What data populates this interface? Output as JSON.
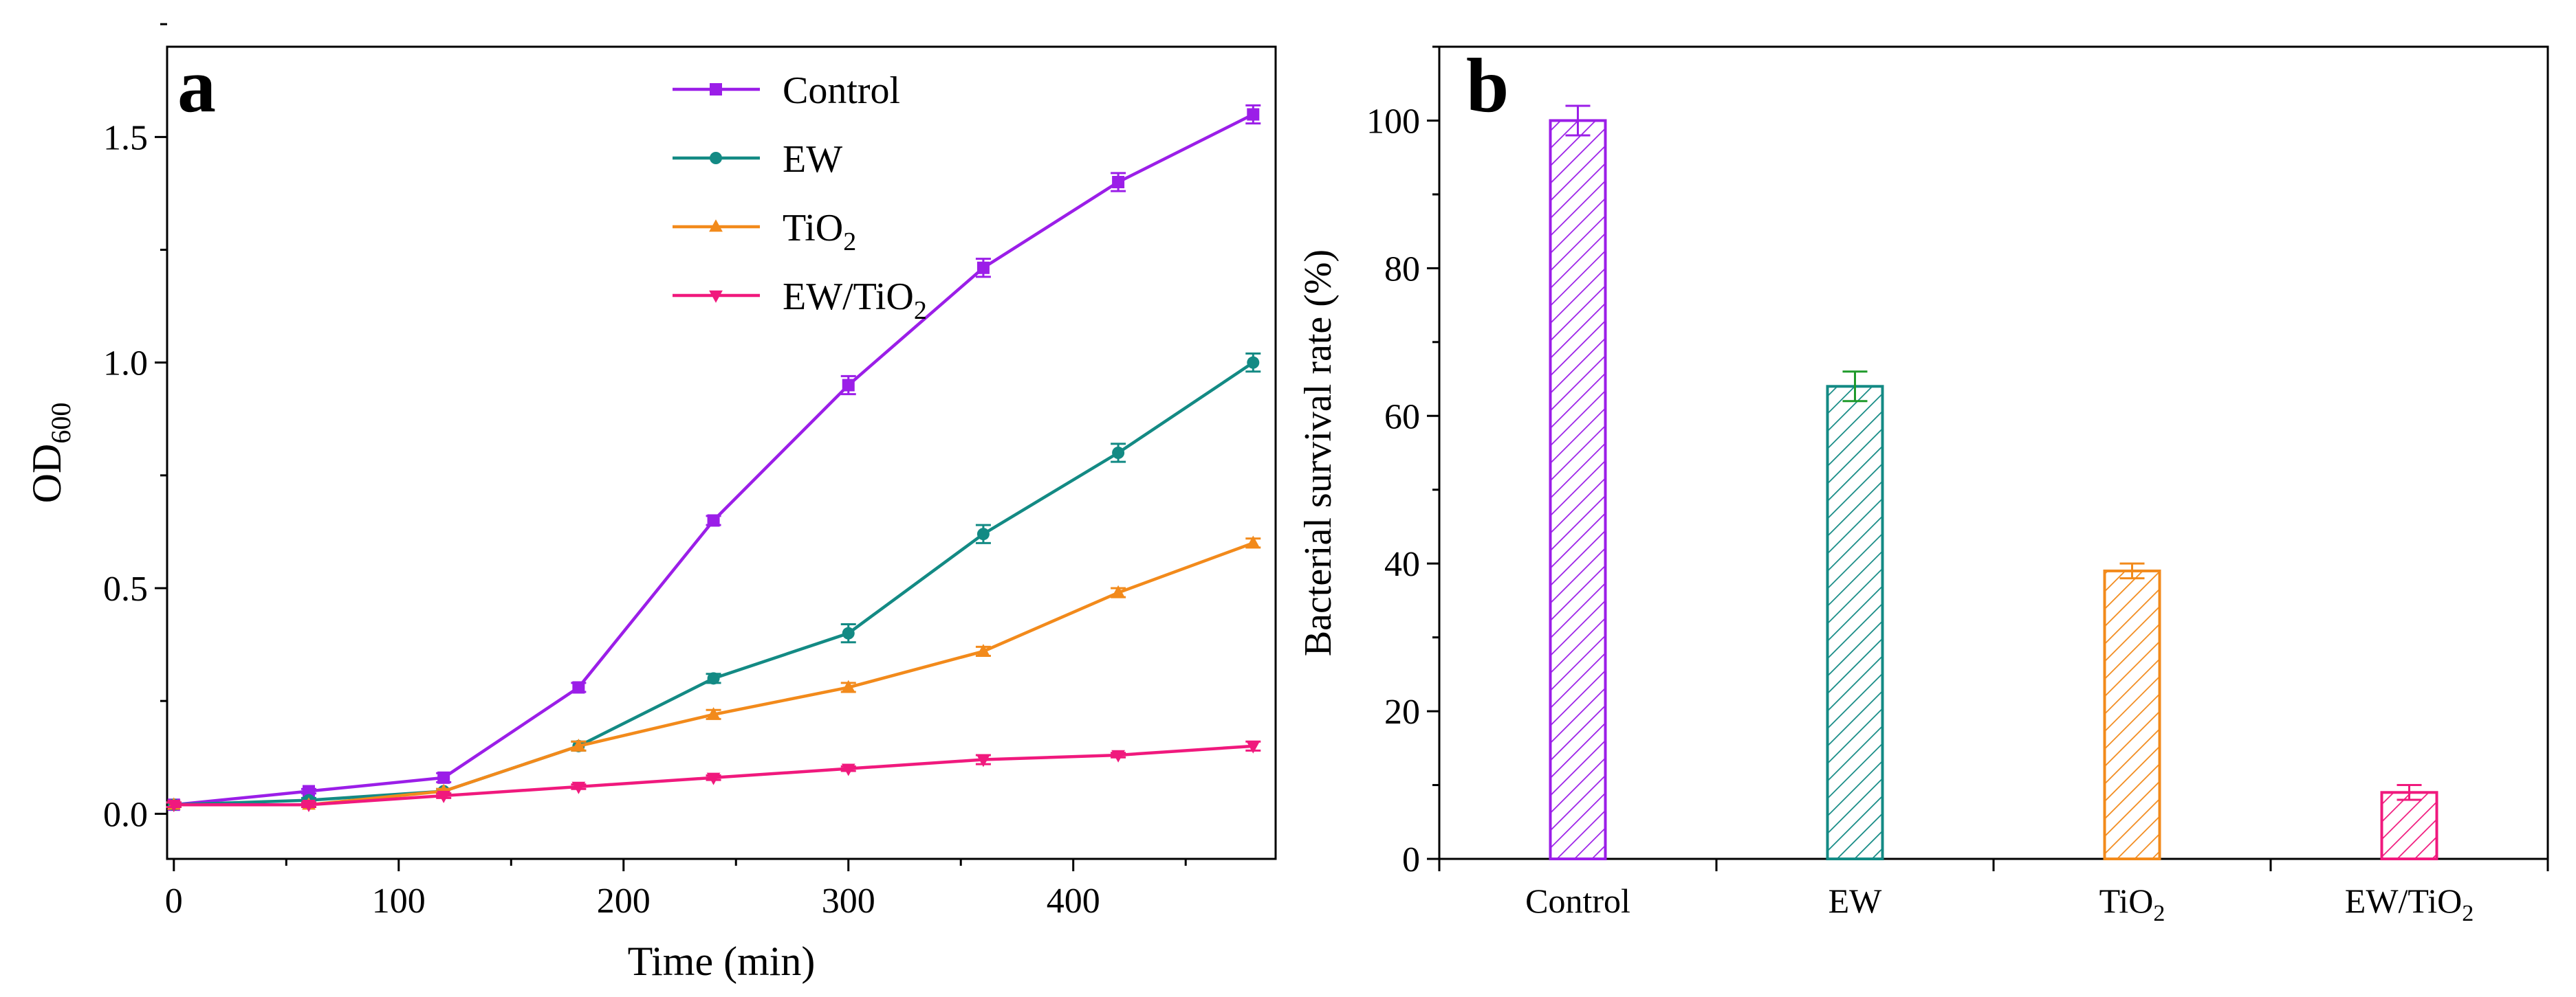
{
  "chart_data": [
    {
      "type": "line",
      "panel_label": "a",
      "xlabel": "Time (min)",
      "ylabel": "OD",
      "ylabel_sub": "600",
      "xlim": [
        -3,
        490
      ],
      "ylim": [
        -0.1,
        1.7
      ],
      "xticks": [
        0,
        100,
        200,
        300,
        400
      ],
      "xtick_labels": [
        "0",
        "100",
        "200",
        "300",
        "400"
      ],
      "yticks": [
        0.0,
        0.5,
        1.0,
        1.5
      ],
      "ytick_labels": [
        "0.0",
        "0.5",
        "1.0",
        "1.5"
      ],
      "grid": false,
      "legend_position": "top-center",
      "x": [
        0,
        60,
        120,
        180,
        240,
        300,
        360,
        420,
        480
      ],
      "series": [
        {
          "name": "Control",
          "name_sub": "",
          "marker": "square",
          "color": "#9b1ee8",
          "values": [
            0.02,
            0.05,
            0.08,
            0.28,
            0.65,
            0.95,
            1.21,
            1.4,
            1.55
          ],
          "errors": [
            0.005,
            0.005,
            0.01,
            0.01,
            0.01,
            0.02,
            0.02,
            0.02,
            0.02
          ]
        },
        {
          "name": "EW",
          "name_sub": "",
          "marker": "circle",
          "color": "#138a84",
          "values": [
            0.02,
            0.03,
            0.05,
            0.15,
            0.3,
            0.4,
            0.62,
            0.8,
            1.0
          ],
          "errors": [
            0.005,
            0.005,
            0.005,
            0.01,
            0.01,
            0.02,
            0.02,
            0.02,
            0.02
          ]
        },
        {
          "name": "TiO",
          "name_sub": "2",
          "marker": "triangle-up",
          "color": "#f28a1b",
          "values": [
            0.02,
            0.02,
            0.05,
            0.15,
            0.22,
            0.28,
            0.36,
            0.49,
            0.6
          ],
          "errors": [
            0.005,
            0.005,
            0.005,
            0.01,
            0.01,
            0.01,
            0.01,
            0.01,
            0.01
          ]
        },
        {
          "name": "EW/TiO",
          "name_sub": "2",
          "marker": "triangle-down",
          "color": "#f0197d",
          "values": [
            0.02,
            0.02,
            0.04,
            0.06,
            0.08,
            0.1,
            0.12,
            0.13,
            0.15
          ],
          "errors": [
            0.005,
            0.005,
            0.005,
            0.005,
            0.005,
            0.005,
            0.01,
            0.005,
            0.01
          ]
        }
      ]
    },
    {
      "type": "bar",
      "panel_label": "b",
      "ylabel": "Bacterial survival rate (%)",
      "xlabel": "",
      "ylim": [
        0,
        110
      ],
      "yticks": [
        0,
        20,
        40,
        60,
        80,
        100
      ],
      "ytick_labels": [
        "0",
        "20",
        "40",
        "60",
        "80",
        "100"
      ],
      "grid": false,
      "fill": "hatched",
      "categories": [
        "Control",
        "EW",
        "TiO",
        "EW/TiO"
      ],
      "category_subs": [
        "",
        "",
        "2",
        "2"
      ],
      "values": [
        100,
        64,
        39,
        9
      ],
      "errors": [
        2,
        2,
        1,
        1
      ],
      "colors": [
        "#9b1ee8",
        "#138a84",
        "#f28a1b",
        "#f0197d"
      ],
      "error_colors": [
        "#9b1ee8",
        "#1f9a2a",
        "#f28a1b",
        "#f0197d"
      ]
    }
  ]
}
